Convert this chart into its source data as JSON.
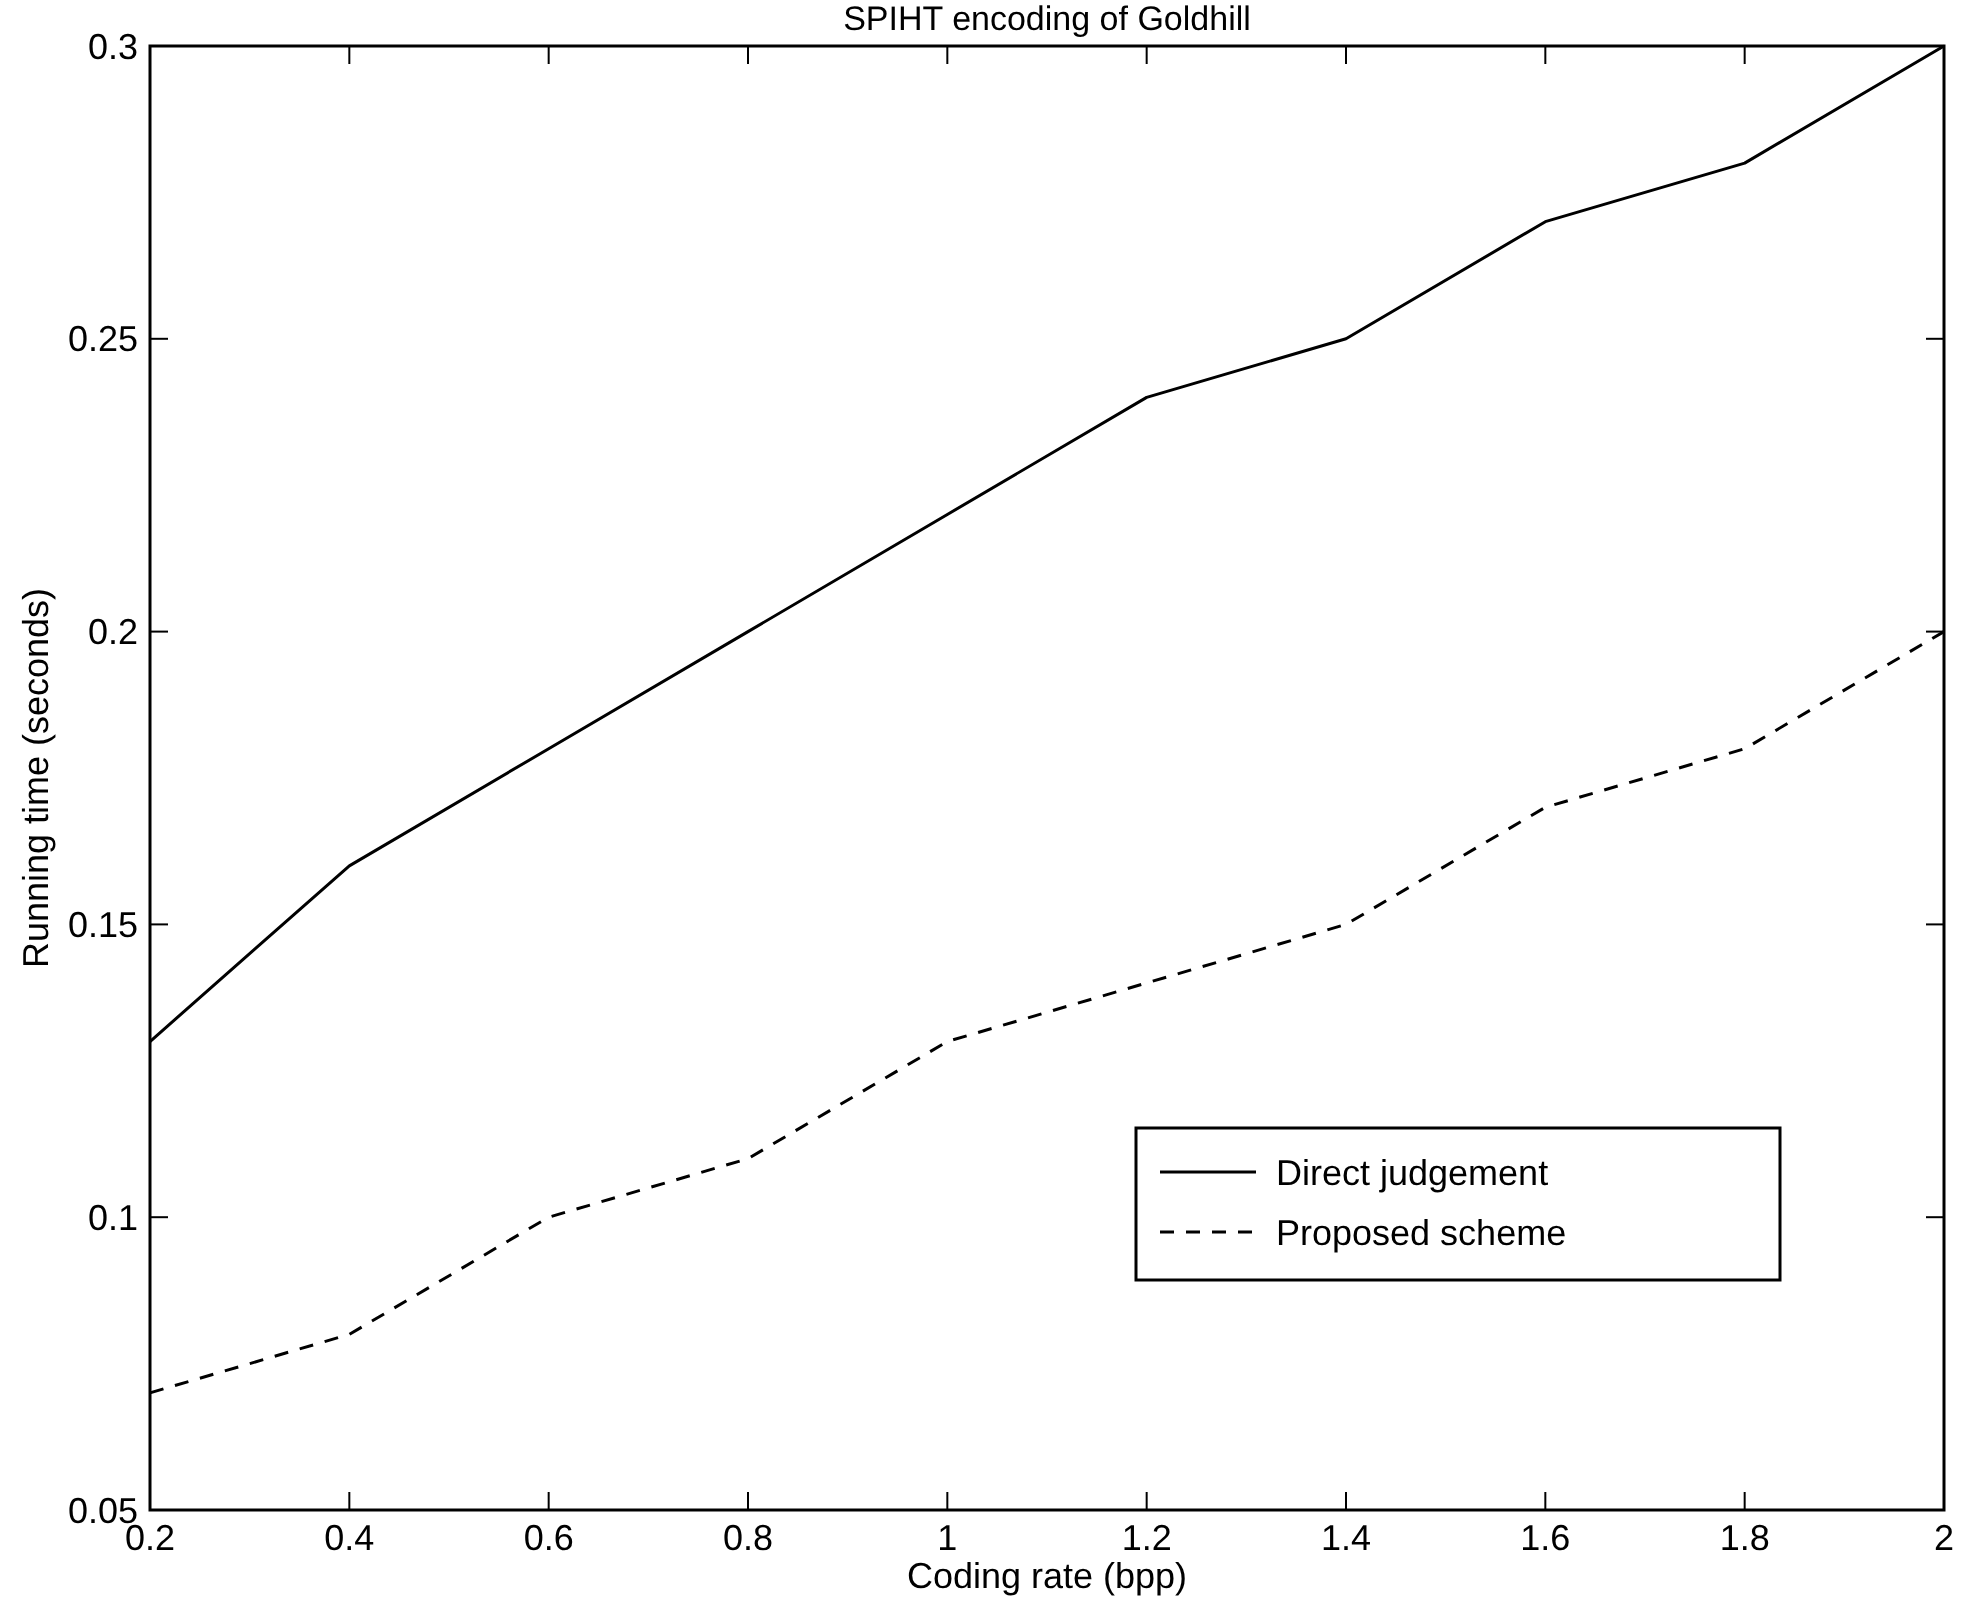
{
  "chart_data": {
    "type": "line",
    "title": "SPIHT encoding of Goldhill",
    "xlabel": "Coding rate (bpp)",
    "ylabel": "Running time (seconds)",
    "x": [
      0.2,
      0.4,
      0.6,
      0.8,
      1.0,
      1.2,
      1.4,
      1.6,
      1.8,
      2.0
    ],
    "series": [
      {
        "name": "Direct judgement",
        "color": "#000000",
        "line_style": "solid",
        "values": [
          0.13,
          0.16,
          0.18,
          0.2,
          0.22,
          0.24,
          0.25,
          0.27,
          0.28,
          0.3
        ]
      },
      {
        "name": "Proposed scheme",
        "color": "#000000",
        "line_style": "dashed",
        "values": [
          0.07,
          0.08,
          0.1,
          0.11,
          0.13,
          0.14,
          0.15,
          0.17,
          0.18,
          0.2
        ]
      }
    ],
    "xlim": [
      0.2,
      2
    ],
    "ylim": [
      0.05,
      0.3
    ],
    "xticks": [
      0.2,
      0.4,
      0.6,
      0.8,
      1,
      1.2,
      1.4,
      1.6,
      1.8,
      2
    ],
    "yticks": [
      0.05,
      0.1,
      0.15,
      0.2,
      0.25,
      0.3
    ],
    "grid": false,
    "legend": "bottom right",
    "marker": "none"
  }
}
